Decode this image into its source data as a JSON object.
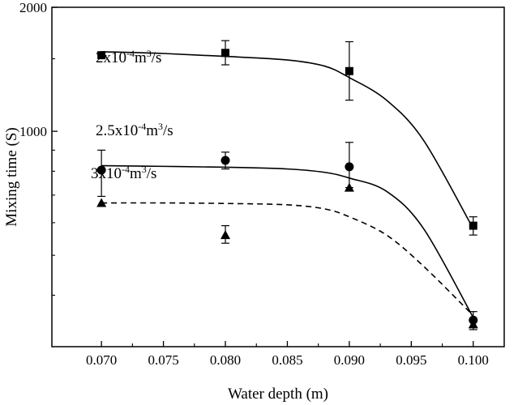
{
  "chart_data": {
    "type": "scatter",
    "xlabel": "Water depth (m)",
    "ylabel": "Mixing time (S)",
    "xlim": [
      0.066,
      0.1025
    ],
    "ylim": [
      300,
      2000
    ],
    "yscale": "log",
    "x_ticks": [
      0.07,
      0.075,
      0.08,
      0.085,
      0.09,
      0.095,
      0.1
    ],
    "x_tick_labels": [
      "0.070",
      "0.075",
      "0.080",
      "0.085",
      "0.090",
      "0.095",
      "0.100"
    ],
    "y_ticks": [
      1000,
      2000
    ],
    "y_tick_labels": [
      "1000",
      "2000"
    ],
    "grid": false,
    "legend": "none",
    "series": [
      {
        "name": "2x10-4m3/s",
        "label_base": "2x10",
        "label_exp": "-4",
        "label_unit": "m",
        "label_unit_exp": "3",
        "label_tail": "/s",
        "marker": "square",
        "line": "solid",
        "x": [
          0.07,
          0.08,
          0.09,
          0.1
        ],
        "y": [
          1530,
          1550,
          1400,
          590
        ],
        "err_low": [
          0,
          100,
          210,
          30
        ],
        "err_high": [
          0,
          110,
          250,
          30
        ],
        "fit_y": [
          1560,
          1545,
          1520,
          1490,
          1440,
          1350,
          1190,
          950,
          580
        ]
      },
      {
        "name": "2.5x10-4m3/s",
        "label_base": "2.5x10",
        "label_exp": "-4",
        "label_unit": "m",
        "label_unit_exp": "3",
        "label_tail": "/s",
        "marker": "circle",
        "line": "solid",
        "x": [
          0.07,
          0.08,
          0.09,
          0.1
        ],
        "y": [
          805,
          850,
          820,
          348
        ],
        "err_low": [
          110,
          40,
          90,
          0
        ],
        "err_high": [
          95,
          40,
          120,
          17
        ],
        "fit_y": [
          825,
          822,
          818,
          810,
          795,
          770,
          715,
          580,
          353
        ]
      },
      {
        "name": "3x10-4m3/s",
        "label_base": "3x10",
        "label_exp": "-4",
        "label_unit": "m",
        "label_unit_exp": "3",
        "label_tail": "/s",
        "marker": "triangle",
        "line": "dashed",
        "x": [
          0.07,
          0.08,
          0.09,
          0.1
        ],
        "y": [
          670,
          560,
          730,
          340
        ],
        "err_low": [
          0,
          25,
          0,
          10
        ],
        "err_high": [
          0,
          30,
          0,
          10
        ],
        "fit_y": [
          670,
          670,
          668,
          663,
          648,
          620,
          560,
          470,
          357
        ]
      }
    ],
    "fit_x": [
      0.07,
      0.075,
      0.08,
      0.085,
      0.088,
      0.09,
      0.093,
      0.096,
      0.1
    ]
  }
}
